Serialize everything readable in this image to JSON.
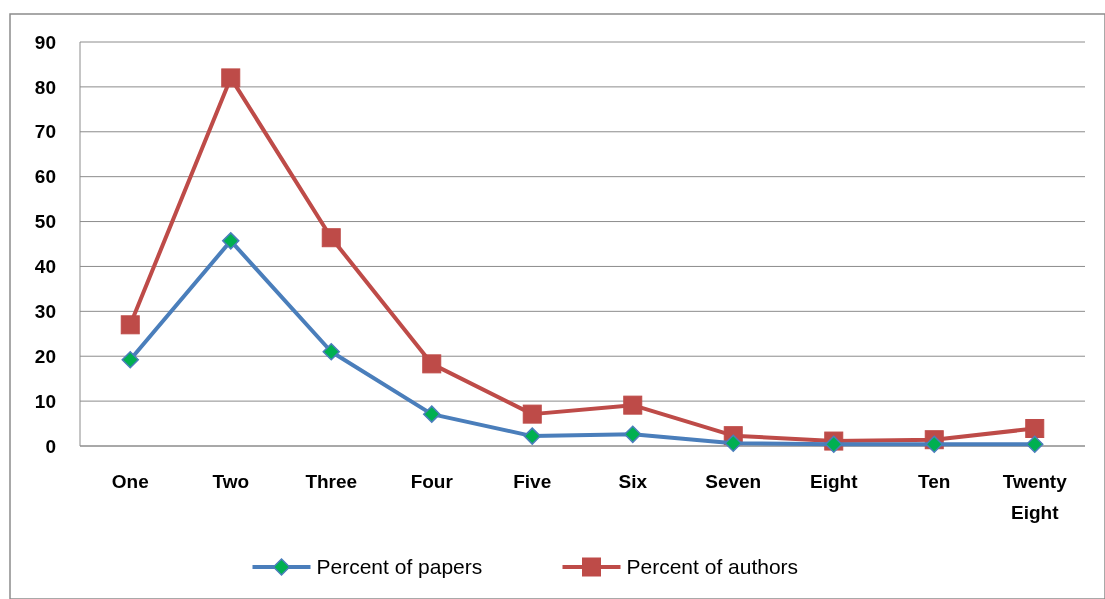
{
  "chart_data": {
    "type": "line",
    "categories": [
      "One",
      "Two",
      "Three",
      "Four",
      "Five",
      "Six",
      "Seven",
      "Eight",
      "Ten",
      "Twenty Eight"
    ],
    "series": [
      {
        "name": "Percent of papers",
        "color": "#4a7ebb",
        "marker": "diamond",
        "values": [
          19.2,
          45.7,
          21,
          7.1,
          2.2,
          2.6,
          0.6,
          0.4,
          0.4,
          0.4
        ]
      },
      {
        "name": "Percent of authors",
        "color": "#be4b48",
        "marker": "square",
        "values": [
          27,
          82,
          46.4,
          18.3,
          7.1,
          9.1,
          2.3,
          1.1,
          1.4,
          3.9
        ]
      }
    ],
    "ylim": [
      0,
      90
    ],
    "yticks": [
      0,
      10,
      20,
      30,
      40,
      50,
      60,
      70,
      80,
      90
    ],
    "grid": "y",
    "legend": "bottom",
    "line_style": "solid"
  }
}
